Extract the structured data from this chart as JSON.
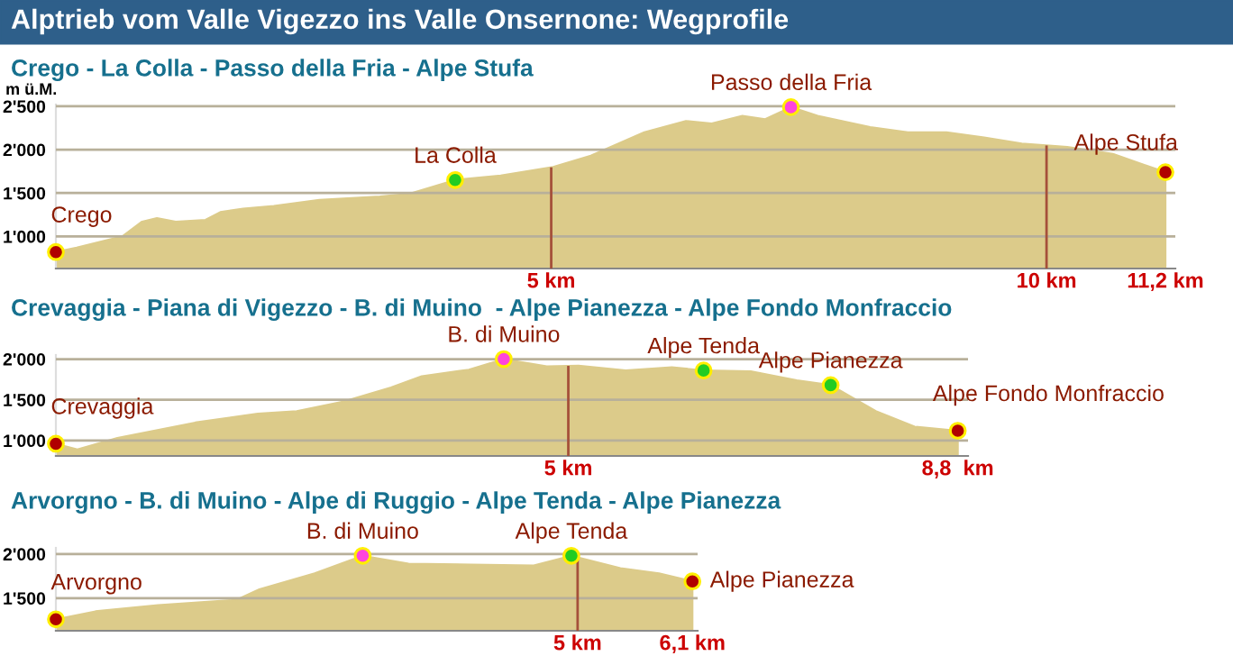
{
  "chart_data": [
    {
      "type": "area",
      "title": "Alptrieb vom Valle Vigezzo ins Valle Onsernone: Wegprofile",
      "subtitle": "Crego - La Colla - Passo della Fria - Alpe Stufa",
      "ylabel": "m ü.M.",
      "xlim": [
        0,
        11.3
      ],
      "ylim": [
        630,
        2520
      ],
      "xticks": [
        {
          "value": 5,
          "label": "5 km"
        },
        {
          "value": 10,
          "label": "10 km"
        },
        {
          "value": 11.2,
          "label": "11,2 km"
        }
      ],
      "yticks": [
        {
          "value": 1000,
          "label": "1'000"
        },
        {
          "value": 1500,
          "label": "1'500"
        },
        {
          "value": 2000,
          "label": "2'000"
        },
        {
          "value": 2500,
          "label": "2'500"
        }
      ],
      "grid": "y",
      "legend": false,
      "ref_lines": [
        {
          "axis": "x",
          "value": 5,
          "color": "#a5503a"
        },
        {
          "axis": "x",
          "value": 10,
          "color": "#a5503a"
        }
      ],
      "series": [
        {
          "color": "#dccb8a",
          "x": [
            0,
            0.21,
            0.67,
            0.87,
            1.02,
            1.21,
            1.51,
            1.66,
            1.89,
            2.2,
            2.66,
            3.27,
            3.57,
            4.03,
            4.49,
            5.02,
            5.4,
            5.94,
            6.36,
            6.62,
            6.93,
            7.16,
            7.42,
            7.69,
            8.22,
            8.6,
            8.99,
            9.37,
            9.75,
            10.21,
            10.67,
            11.2
          ],
          "values": [
            820,
            870,
            1000,
            1170,
            1210,
            1170,
            1190,
            1280,
            1320,
            1350,
            1420,
            1460,
            1490,
            1650,
            1700,
            1800,
            1930,
            2200,
            2330,
            2300,
            2390,
            2350,
            2490,
            2390,
            2260,
            2200,
            2200,
            2140,
            2070,
            2030,
            1950,
            1740
          ]
        },
        {
          "type": "scatter",
          "marker": "circle",
          "x": [
            0,
            4.03,
            7.42,
            11.2
          ],
          "values": [
            820,
            1650,
            2490,
            1740
          ],
          "colors": [
            "#b00000",
            "#22cc22",
            "#ff44dd",
            "#b00000"
          ]
        }
      ],
      "annotations": [
        {
          "text": "Crego",
          "x": 0,
          "y": 820
        },
        {
          "text": "La Colla",
          "x": 4.03,
          "y": 1650
        },
        {
          "text": "Passo della Fria",
          "x": 7.42,
          "y": 2490
        },
        {
          "text": "Alpe Stufa",
          "x": 11.2,
          "y": 1740
        }
      ]
    },
    {
      "type": "area",
      "title": "Crevaggia - Piana di Vigezzo - B. di Muino  - Alpe Pianezza - Alpe Fondo Monfraccio",
      "xlim": [
        0,
        8.9
      ],
      "ylim": [
        810,
        2050
      ],
      "xticks": [
        {
          "value": 5,
          "label": "5 km"
        },
        {
          "value": 8.8,
          "label": "8,8  km"
        }
      ],
      "yticks": [
        {
          "value": 1000,
          "label": "1'000"
        },
        {
          "value": 1500,
          "label": "1'500"
        },
        {
          "value": 2000,
          "label": "2'000"
        }
      ],
      "grid": "y",
      "legend": false,
      "ref_lines": [
        {
          "axis": "x",
          "value": 5,
          "color": "#a5503a"
        }
      ],
      "series": [
        {
          "color": "#dccb8a",
          "x": [
            0,
            0.21,
            0.6,
            1.36,
            1.97,
            2.35,
            2.81,
            3.27,
            3.57,
            4.03,
            4.37,
            4.79,
            5.1,
            5.56,
            6.01,
            6.32,
            6.78,
            7.23,
            7.56,
            8.0,
            8.38,
            8.8
          ],
          "values": [
            960,
            890,
            1030,
            1220,
            1330,
            1360,
            1480,
            1650,
            1790,
            1870,
            2000,
            1910,
            1920,
            1860,
            1900,
            1860,
            1850,
            1740,
            1680,
            1360,
            1170,
            1120
          ]
        },
        {
          "type": "scatter",
          "marker": "circle",
          "x": [
            0,
            4.37,
            6.32,
            7.56,
            8.8
          ],
          "values": [
            960,
            2000,
            1860,
            1680,
            1120
          ],
          "colors": [
            "#b00000",
            "#ff44dd",
            "#22cc22",
            "#22cc22",
            "#b00000"
          ]
        }
      ],
      "annotations": [
        {
          "text": "Crevaggia",
          "x": 0,
          "y": 960
        },
        {
          "text": "B. di Muino",
          "x": 4.37,
          "y": 2000
        },
        {
          "text": "Alpe Tenda",
          "x": 6.32,
          "y": 1860
        },
        {
          "text": "Alpe Pianezza",
          "x": 7.56,
          "y": 1680
        },
        {
          "text": "Alpe Fondo Monfraccio",
          "x": 8.8,
          "y": 1120
        }
      ]
    },
    {
      "type": "area",
      "title": "Arvorgno - B. di Muino - Alpe di Ruggio - Alpe Tenda - Alpe Pianezza",
      "xlim": [
        0,
        6.15
      ],
      "ylim": [
        1130,
        2070
      ],
      "xticks": [
        {
          "value": 5,
          "label": "5 km"
        },
        {
          "value": 6.1,
          "label": "6,1 km"
        }
      ],
      "yticks": [
        {
          "value": 1500,
          "label": "1'500"
        },
        {
          "value": 2000,
          "label": "2'000"
        }
      ],
      "grid": "y",
      "legend": false,
      "ref_lines": [
        {
          "axis": "x",
          "value": 5,
          "color": "#a5503a"
        }
      ],
      "series": [
        {
          "color": "#dccb8a",
          "x": [
            0,
            0.38,
            0.98,
            1.73,
            1.95,
            2.48,
            2.94,
            3.38,
            3.98,
            4.58,
            4.94,
            5.41,
            5.78,
            6.1
          ],
          "values": [
            1260,
            1350,
            1420,
            1480,
            1600,
            1780,
            1980,
            1890,
            1880,
            1870,
            1980,
            1840,
            1780,
            1690
          ]
        },
        {
          "type": "scatter",
          "marker": "circle",
          "x": [
            0,
            2.94,
            4.94,
            6.1
          ],
          "values": [
            1260,
            1980,
            1980,
            1690
          ],
          "colors": [
            "#b00000",
            "#ff44dd",
            "#22cc22",
            "#b00000"
          ]
        }
      ],
      "annotations": [
        {
          "text": "Arvorgno",
          "x": 0,
          "y": 1260
        },
        {
          "text": "B. di Muino",
          "x": 2.94,
          "y": 1980
        },
        {
          "text": "Alpe Tenda",
          "x": 4.94,
          "y": 1980
        },
        {
          "text": "Alpe Pianezza",
          "x": 6.1,
          "y": 1690
        }
      ]
    }
  ]
}
